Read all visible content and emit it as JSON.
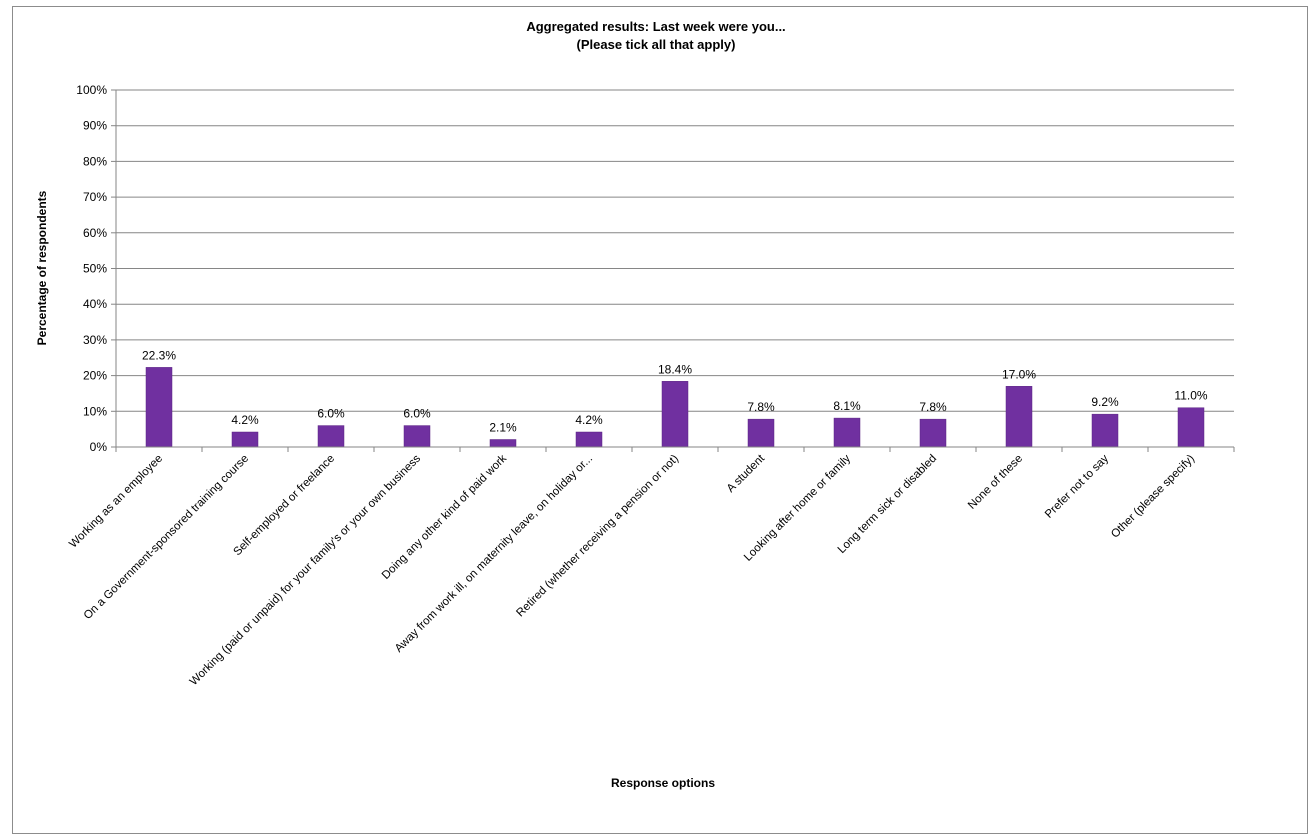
{
  "colors": {
    "bar": "#7030a0",
    "bar_edge": "#5a2483",
    "grid": "#868686",
    "axis": "#868686"
  },
  "chart_data": {
    "type": "bar",
    "title": "Aggregated results: Last week were you...",
    "subtitle": "(Please tick all that apply)",
    "xlabel": "Response options",
    "ylabel": "Percentage of respondents",
    "ylim": [
      0,
      100
    ],
    "yticks": [
      0,
      10,
      20,
      30,
      40,
      50,
      60,
      70,
      80,
      90,
      100
    ],
    "ytick_labels": [
      "0%",
      "10%",
      "20%",
      "30%",
      "40%",
      "50%",
      "60%",
      "70%",
      "80%",
      "90%",
      "100%"
    ],
    "grid": true,
    "legend": "none",
    "categories": [
      "Working as an employee",
      "On a Government-sponsored training course",
      "Self-employed or freelance",
      "Working (paid or unpaid) for your family's or your own business",
      "Doing any other kind of paid work",
      "Away from work ill, on maternity leave, on holiday or...",
      "Retired (whether receiving a pension or not)",
      "A student",
      "Looking after home or family",
      "Long term sick or disabled",
      "None of these",
      "Prefer not to say",
      "Other (please specify)"
    ],
    "values": [
      22.3,
      4.2,
      6.0,
      6.0,
      2.1,
      4.2,
      18.4,
      7.8,
      8.1,
      7.8,
      17.0,
      9.2,
      11.0
    ],
    "value_labels": [
      "22.3%",
      "4.2%",
      "6.0%",
      "6.0%",
      "2.1%",
      "4.2%",
      "18.4%",
      "7.8%",
      "8.1%",
      "7.8%",
      "17.0%",
      "9.2%",
      "11.0%"
    ]
  }
}
